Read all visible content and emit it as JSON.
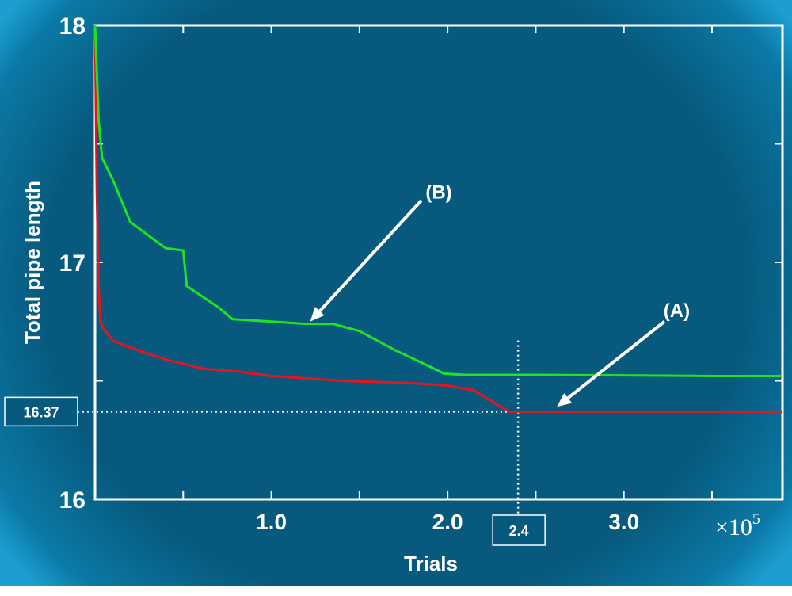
{
  "colors": {
    "background": "#075a7e",
    "axis": "#ffffff",
    "series_A": "#e8131e",
    "series_B": "#1ee61e"
  },
  "chart_data": {
    "type": "line",
    "xlabel": "Trials",
    "ylabel": "Total pipe length",
    "x_multiplier": "×10",
    "x_multiplier_exp": "5",
    "xlim": [
      0,
      3.9
    ],
    "ylim": [
      16,
      18
    ],
    "xticks": [
      0.5,
      1.0,
      1.5,
      2.0,
      2.5,
      3.0,
      3.5
    ],
    "xtick_labels": [
      {
        "x": 1.0,
        "label": "1.0"
      },
      {
        "x": 2.0,
        "label": "2.0"
      },
      {
        "x": 3.0,
        "label": "3.0"
      }
    ],
    "yticks": [
      16,
      16.5,
      17,
      17.5,
      18
    ],
    "ytick_labels": [
      {
        "y": 18,
        "label": "18"
      },
      {
        "y": 17,
        "label": "17"
      },
      {
        "y": 16,
        "label": "16"
      }
    ],
    "grid": false,
    "series": [
      {
        "key": "A",
        "color": "#e8131e",
        "x": [
          0.0,
          0.01,
          0.02,
          0.03,
          0.05,
          0.1,
          0.2,
          0.4,
          0.62,
          0.8,
          1.0,
          1.2,
          1.4,
          1.6,
          1.8,
          2.0,
          2.15,
          2.28,
          2.35,
          2.5,
          3.0,
          3.5,
          3.9
        ],
        "y": [
          18.0,
          17.3,
          16.9,
          16.75,
          16.72,
          16.67,
          16.64,
          16.59,
          16.55,
          16.54,
          16.52,
          16.51,
          16.5,
          16.495,
          16.49,
          16.48,
          16.46,
          16.4,
          16.37,
          16.37,
          16.37,
          16.37,
          16.37
        ]
      },
      {
        "key": "B",
        "color": "#1ee61e",
        "x": [
          0.0,
          0.02,
          0.04,
          0.1,
          0.2,
          0.4,
          0.5,
          0.52,
          0.6,
          0.7,
          0.78,
          1.0,
          1.2,
          1.35,
          1.5,
          1.7,
          1.9,
          1.98,
          2.1,
          2.5,
          3.0,
          3.5,
          3.9
        ],
        "y": [
          18.0,
          17.6,
          17.44,
          17.35,
          17.17,
          17.06,
          17.05,
          16.9,
          16.86,
          16.81,
          16.76,
          16.75,
          16.74,
          16.74,
          16.71,
          16.63,
          16.56,
          16.53,
          16.525,
          16.525,
          16.523,
          16.52,
          16.52
        ]
      }
    ],
    "annotations": [
      {
        "label": "(A)",
        "text_x": 3.3,
        "text_y": 16.77,
        "arrow_from_x": 3.23,
        "arrow_from_y": 16.75,
        "arrow_to_x": 2.62,
        "arrow_to_y": 16.39
      },
      {
        "label": "(B)",
        "text_x": 1.95,
        "text_y": 17.27,
        "arrow_from_x": 1.85,
        "arrow_from_y": 17.26,
        "arrow_to_x": 1.22,
        "arrow_to_y": 16.75
      }
    ],
    "reference_lines": [
      {
        "orientation": "horizontal",
        "value": 16.37,
        "label": "16.37"
      },
      {
        "orientation": "vertical",
        "value": 2.4,
        "label": "2.4"
      }
    ]
  }
}
